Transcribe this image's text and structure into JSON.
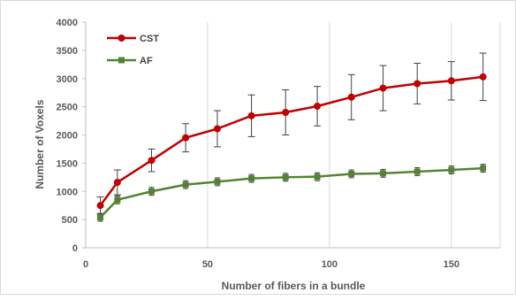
{
  "chart_data": {
    "type": "line",
    "xlabel": "Number of fibers in a bundle",
    "ylabel": "Number of Voxels",
    "xlim": [
      0,
      170
    ],
    "ylim": [
      0,
      4000
    ],
    "xticks": [
      0,
      50,
      100,
      150
    ],
    "yticks": [
      0,
      500,
      1000,
      1500,
      2000,
      2500,
      3000,
      3500,
      4000
    ],
    "grid": "vertical",
    "legend_position": "top-left",
    "x": [
      6,
      13,
      27,
      41,
      54,
      68,
      82,
      95,
      109,
      122,
      136,
      150,
      163
    ],
    "series": [
      {
        "name": "CST",
        "color": "#c00000",
        "marker": "circle",
        "values": [
          750,
          1160,
          1550,
          1950,
          2110,
          2340,
          2400,
          2510,
          2670,
          2830,
          2910,
          2960,
          3030
        ],
        "errors": [
          150,
          220,
          200,
          250,
          320,
          370,
          400,
          350,
          400,
          400,
          360,
          340,
          420
        ]
      },
      {
        "name": "AF",
        "color": "#548235",
        "marker": "square",
        "values": [
          540,
          850,
          1000,
          1120,
          1170,
          1230,
          1250,
          1260,
          1310,
          1320,
          1350,
          1380,
          1410
        ]
      }
    ]
  }
}
